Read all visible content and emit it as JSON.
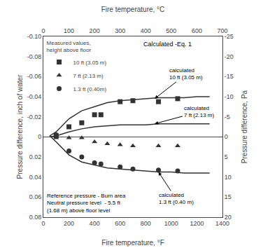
{
  "chart_data": {
    "type": "line",
    "xlabel": "Fire temperature, °F",
    "x2label": "Fire temperature, °C",
    "ylabel": "Pressure difference, inch of water",
    "y2label": "Pressure difference, Pa",
    "xlim": [
      0,
      1400
    ],
    "xticks": [
      0,
      200,
      400,
      600,
      800,
      1000,
      1200,
      1400
    ],
    "x2lim": [
      0,
      700
    ],
    "x2ticks": [
      0,
      100,
      200,
      300,
      400,
      500,
      600,
      700
    ],
    "ylim": [
      0.08,
      -0.1
    ],
    "yticks": [
      {
        "value": -0.1,
        "label": "-0.10"
      },
      -0.08,
      -0.06,
      -0.04,
      -0.02,
      0,
      0.02,
      0.04,
      0.06,
      0.08
    ],
    "y2lim": [
      20,
      -25
    ],
    "y2ticks": [
      -25,
      -20,
      -15,
      -10,
      -5,
      0,
      5,
      10,
      15,
      20
    ],
    "grid": false,
    "legend": "upper left",
    "legend_title": "Measured values,\nheight above floor",
    "series": [
      {
        "type": "line",
        "color": "#333333",
        "x": [
          50,
          100,
          200,
          300,
          400,
          500,
          600,
          700,
          800,
          900,
          1000,
          1100,
          1200,
          1300
        ],
        "values": [
          -0.001,
          -0.005,
          -0.018,
          -0.026,
          -0.03,
          -0.034,
          -0.036,
          -0.037,
          -0.038,
          -0.039,
          -0.039,
          -0.039,
          -0.04,
          -0.04
        ]
      },
      {
        "type": "line",
        "color": "#333333",
        "x": [
          50,
          100,
          200,
          300,
          400,
          500,
          600,
          700,
          800,
          900,
          1000,
          1100,
          1200,
          1300
        ],
        "values": [
          0.0,
          -0.001,
          -0.005,
          -0.008,
          -0.01,
          -0.011,
          -0.012,
          -0.012,
          -0.012,
          -0.013,
          -0.013,
          -0.013,
          -0.013,
          -0.013
        ]
      },
      {
        "type": "line",
        "color": "#333333",
        "x": [
          50,
          100,
          200,
          300,
          400,
          500,
          600,
          700,
          800,
          900,
          1000,
          1100,
          1200,
          1300
        ],
        "values": [
          -0.001,
          0.005,
          0.018,
          0.025,
          0.028,
          0.031,
          0.032,
          0.033,
          0.034,
          0.035,
          0.035,
          0.036,
          0.036,
          0.036
        ]
      },
      {
        "type": "scatter",
        "name": "10 ft (3.05 m)",
        "color": "#333333",
        "marker": "square",
        "x": [
          100,
          200,
          300,
          400,
          450,
          600,
          700,
          900,
          1050
        ],
        "values": [
          -0.001,
          -0.01,
          -0.014,
          -0.022,
          -0.022,
          -0.035,
          -0.036,
          -0.035,
          -0.038
        ]
      },
      {
        "type": "scatter",
        "name": "7 ft (2.13 m)",
        "color": "#333333",
        "marker": "triangle-up",
        "x": [
          100,
          200,
          300,
          400,
          500,
          600,
          700,
          900,
          1050
        ],
        "values": [
          0.001,
          0.001,
          0.001,
          0.005,
          0.007,
          0.008,
          0.009,
          0.009,
          0.009
        ]
      },
      {
        "type": "scatter",
        "name": "1.3 ft (0.40m)",
        "color": "#333333",
        "marker": "circle",
        "x": [
          100,
          200,
          300,
          400,
          450,
          600,
          700,
          900,
          1050
        ],
        "values": [
          -0.002,
          0.014,
          0.02,
          0.026,
          0.027,
          0.03,
          0.032,
          0.033,
          0.034
        ]
      }
    ],
    "annotations": [
      {
        "text": "calculated\n10 ft (3.05 m)",
        "x": 870,
        "y": -0.038
      },
      {
        "text": "calculated\n7 ft (2.13 m)",
        "x": 870,
        "y": -0.013
      },
      {
        "text": "calculated\n1.3 ft (0.40 m)",
        "x": 900,
        "y": 0.035
      },
      {
        "text": "Calculated -Eq. 1"
      },
      {
        "text": "Reference pressure - Burn area\nNeutral pressure level  - 5.5 ft\n(1.68 m) above floor level"
      }
    ]
  }
}
